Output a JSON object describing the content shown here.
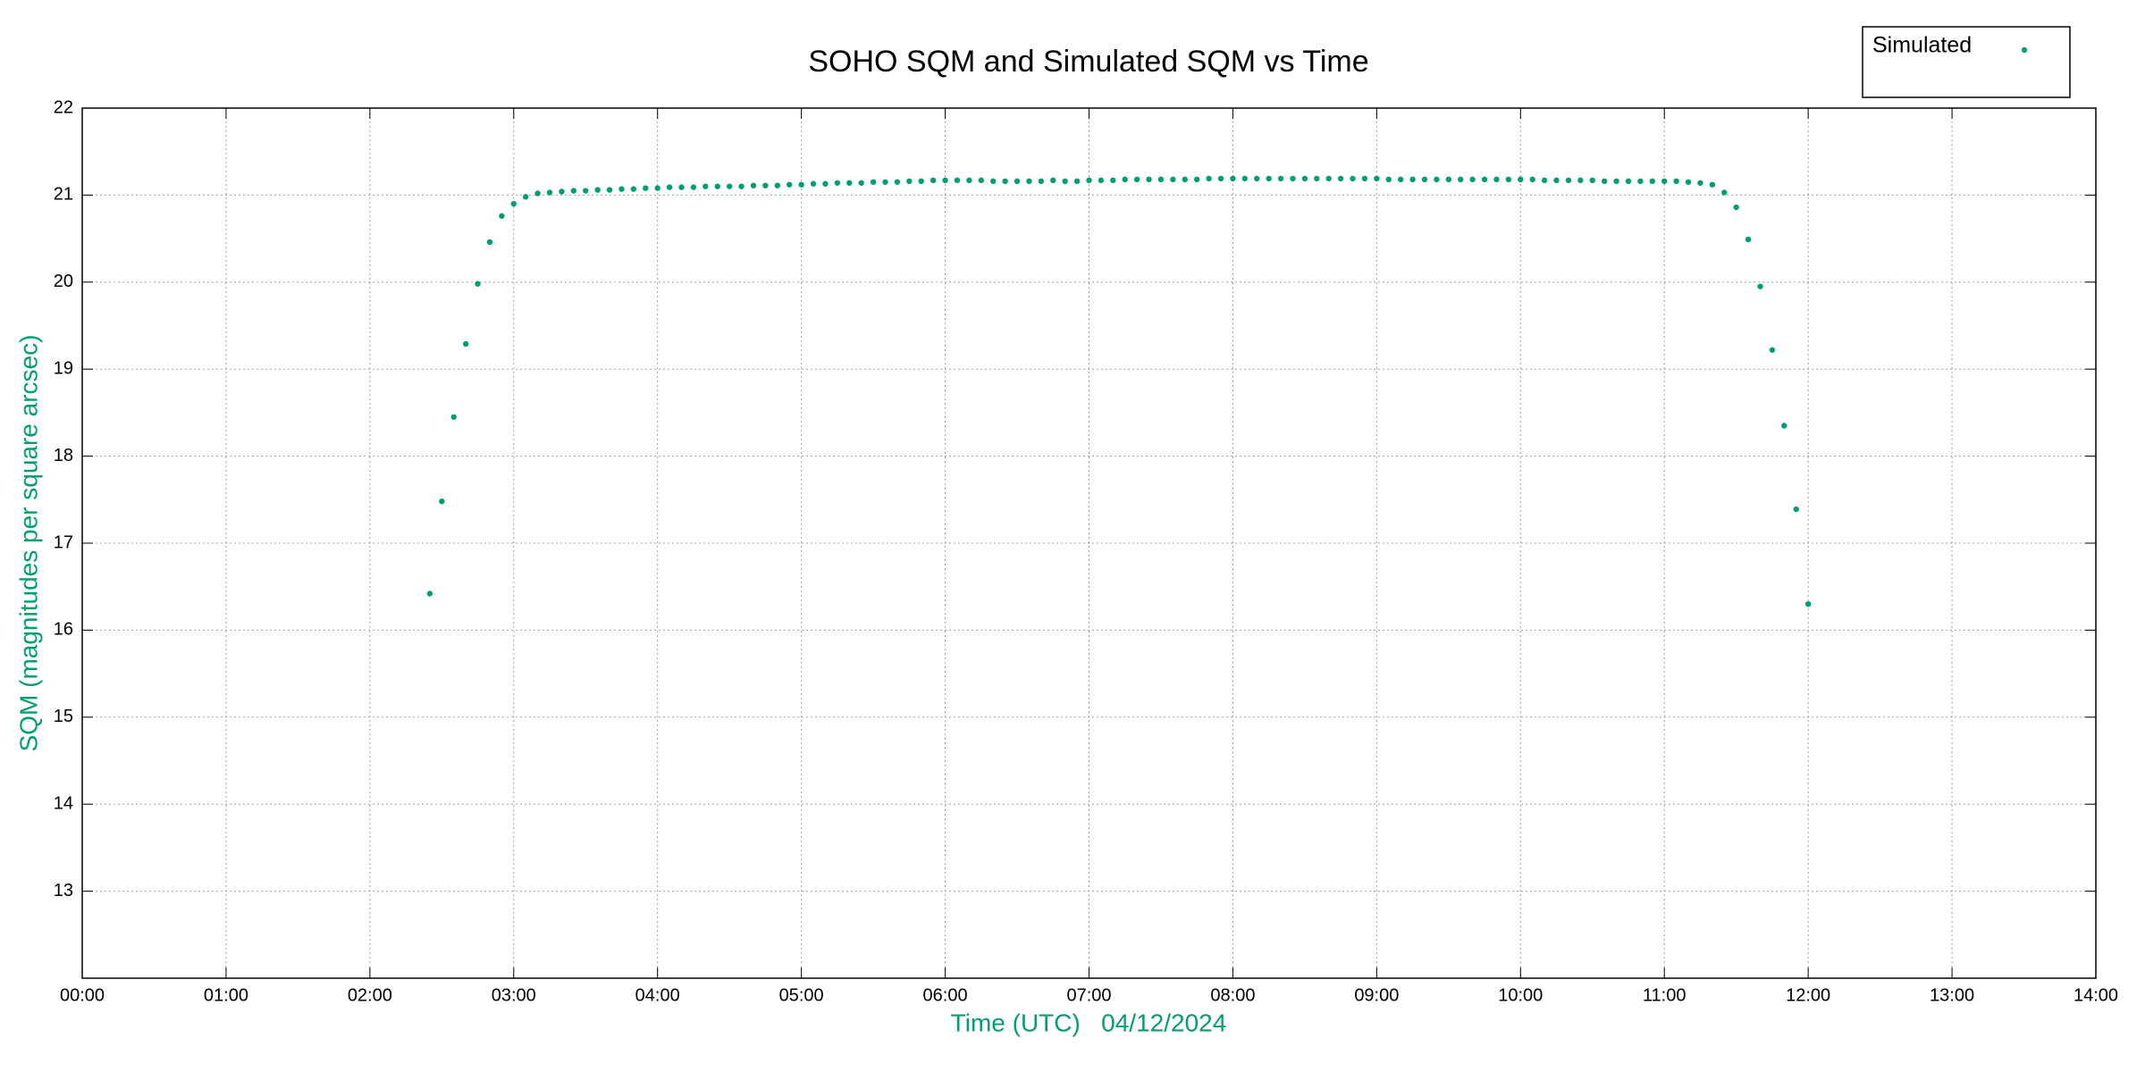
{
  "chart_data": {
    "type": "scatter",
    "title": "SOHO SQM and Simulated SQM vs Time",
    "x_label": "Time (UTC)   04/12/2024",
    "y_label": "SQM (magnitudes per square arcsec)",
    "legend_position": "top-right",
    "grid": true,
    "xlim": [
      0,
      840
    ],
    "xticks": [
      {
        "value": 0,
        "label": "00:00"
      },
      {
        "value": 60,
        "label": "01:00"
      },
      {
        "value": 120,
        "label": "02:00"
      },
      {
        "value": 180,
        "label": "03:00"
      },
      {
        "value": 240,
        "label": "04:00"
      },
      {
        "value": 300,
        "label": "05:00"
      },
      {
        "value": 360,
        "label": "06:00"
      },
      {
        "value": 420,
        "label": "07:00"
      },
      {
        "value": 480,
        "label": "08:00"
      },
      {
        "value": 540,
        "label": "09:00"
      },
      {
        "value": 600,
        "label": "10:00"
      },
      {
        "value": 660,
        "label": "11:00"
      },
      {
        "value": 720,
        "label": "12:00"
      },
      {
        "value": 780,
        "label": "13:00"
      },
      {
        "value": 840,
        "label": "14:00"
      }
    ],
    "ylim": [
      12,
      22
    ],
    "yticks": [
      13,
      14,
      15,
      16,
      17,
      18,
      19,
      20,
      21,
      22
    ],
    "x": [
      145,
      150,
      155,
      160,
      165,
      170,
      175,
      180,
      185,
      190,
      195,
      200,
      205,
      210,
      215,
      220,
      225,
      230,
      235,
      240,
      245,
      250,
      255,
      260,
      265,
      270,
      275,
      280,
      285,
      290,
      295,
      300,
      305,
      310,
      315,
      320,
      325,
      330,
      335,
      340,
      345,
      350,
      355,
      360,
      365,
      370,
      375,
      380,
      385,
      390,
      395,
      400,
      405,
      410,
      415,
      420,
      425,
      430,
      435,
      440,
      445,
      450,
      455,
      460,
      465,
      470,
      475,
      480,
      485,
      490,
      495,
      500,
      505,
      510,
      515,
      520,
      525,
      530,
      535,
      540,
      545,
      550,
      555,
      560,
      565,
      570,
      575,
      580,
      585,
      590,
      595,
      600,
      605,
      610,
      615,
      620,
      625,
      630,
      635,
      640,
      645,
      650,
      655,
      660,
      665,
      670,
      675,
      680,
      685,
      690,
      695,
      700,
      705,
      710,
      715,
      720
    ],
    "series": [
      {
        "name": "Simulated",
        "color": "#009e73",
        "values": [
          16.42,
          17.48,
          18.45,
          19.29,
          19.98,
          20.46,
          20.76,
          20.9,
          20.98,
          21.02,
          21.03,
          21.04,
          21.05,
          21.05,
          21.06,
          21.06,
          21.07,
          21.07,
          21.08,
          21.08,
          21.09,
          21.09,
          21.09,
          21.1,
          21.1,
          21.1,
          21.1,
          21.11,
          21.11,
          21.11,
          21.12,
          21.12,
          21.13,
          21.13,
          21.14,
          21.14,
          21.14,
          21.15,
          21.15,
          21.15,
          21.16,
          21.16,
          21.17,
          21.17,
          21.17,
          21.17,
          21.17,
          21.16,
          21.16,
          21.16,
          21.16,
          21.16,
          21.17,
          21.16,
          21.16,
          21.17,
          21.17,
          21.17,
          21.18,
          21.18,
          21.18,
          21.18,
          21.18,
          21.18,
          21.18,
          21.19,
          21.19,
          21.19,
          21.19,
          21.19,
          21.19,
          21.19,
          21.19,
          21.19,
          21.19,
          21.19,
          21.19,
          21.19,
          21.19,
          21.19,
          21.18,
          21.18,
          21.18,
          21.18,
          21.18,
          21.18,
          21.18,
          21.18,
          21.18,
          21.18,
          21.18,
          21.18,
          21.18,
          21.17,
          21.17,
          21.17,
          21.17,
          21.17,
          21.16,
          21.16,
          21.16,
          21.16,
          21.16,
          21.16,
          21.16,
          21.15,
          21.14,
          21.12,
          21.03,
          20.86,
          20.49,
          19.95,
          19.22,
          18.35,
          17.39,
          16.3
        ]
      }
    ]
  }
}
